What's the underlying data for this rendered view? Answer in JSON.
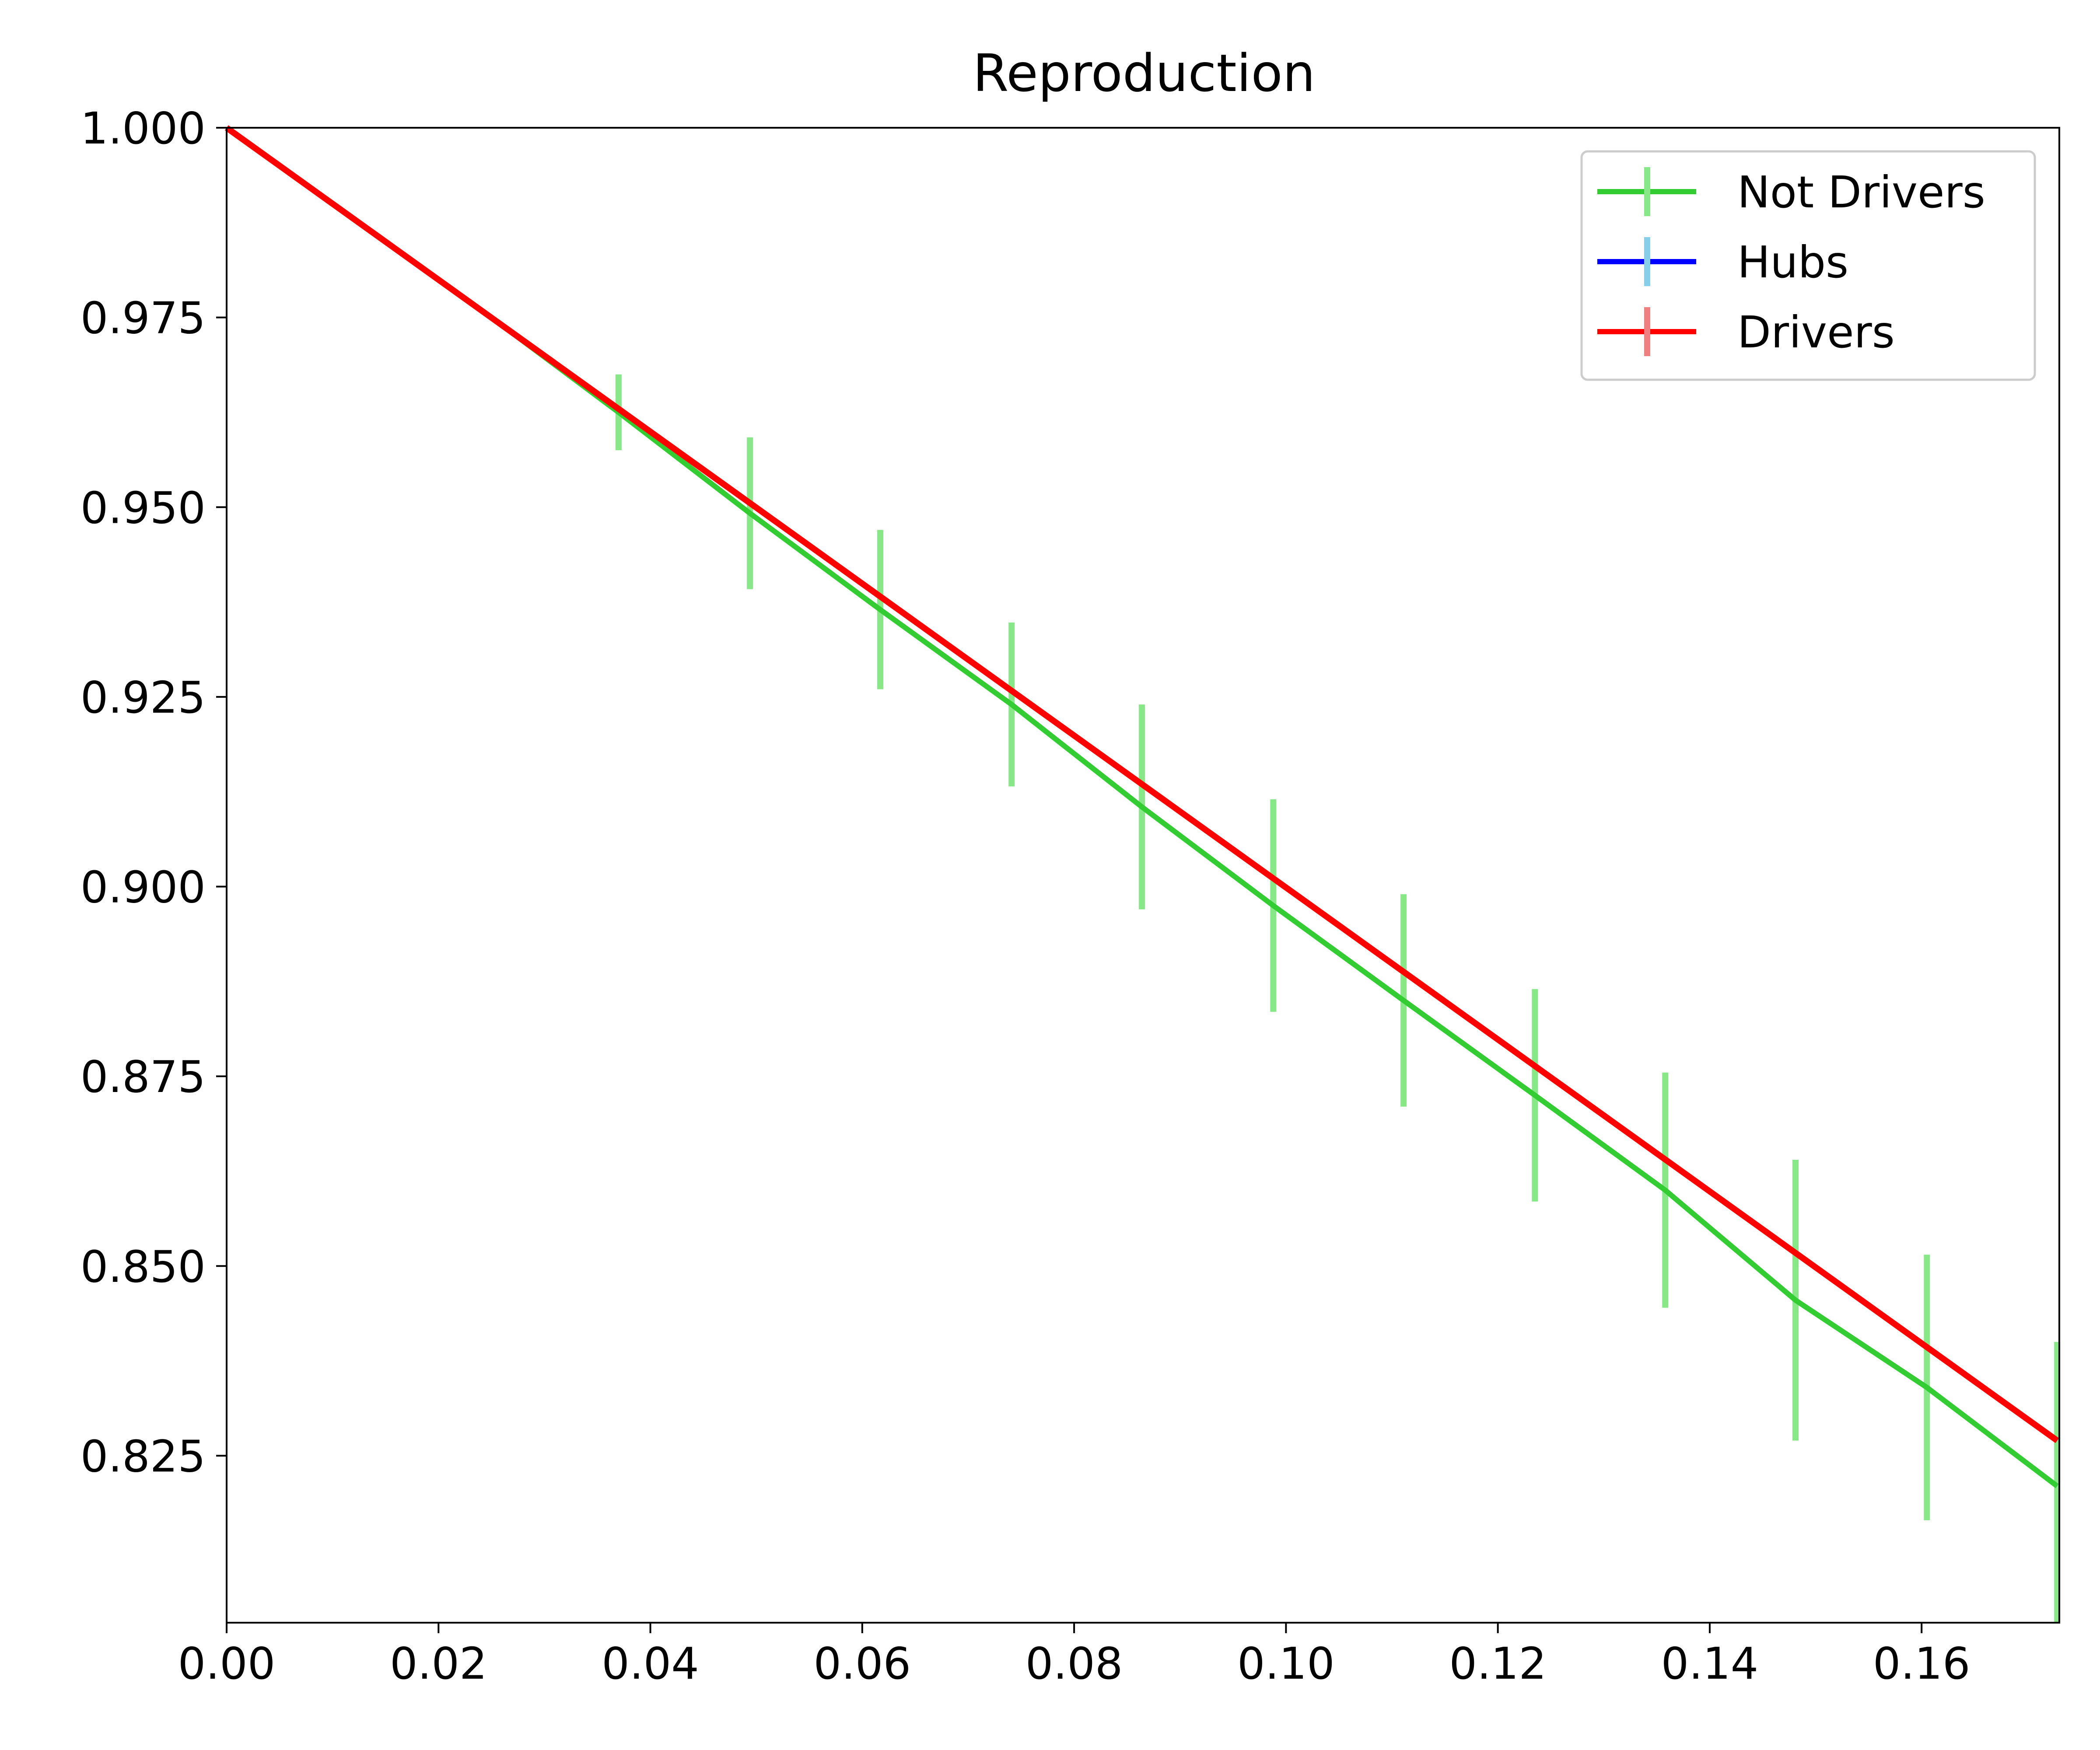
{
  "chart_data": {
    "type": "line",
    "title": "Reproduction",
    "xlabel": "",
    "ylabel": "",
    "xlim": [
      0.0,
      0.173
    ],
    "ylim": [
      0.803,
      1.0
    ],
    "x_ticks": [
      "0.00",
      "0.02",
      "0.04",
      "0.06",
      "0.08",
      "0.10",
      "0.12",
      "0.14",
      "0.16"
    ],
    "y_ticks": [
      "0.825",
      "0.850",
      "0.875",
      "0.900",
      "0.925",
      "0.950",
      "0.975",
      "1.000"
    ],
    "grid": false,
    "legend": {
      "position": "top-right",
      "entries": [
        "Not Drivers",
        "Hubs",
        "Drivers"
      ]
    },
    "series": [
      {
        "name": "Not Drivers",
        "color": "#33cc33",
        "errorbar_color": "#88e888",
        "x": [
          0.0,
          0.0123,
          0.0247,
          0.037,
          0.0494,
          0.0617,
          0.0741,
          0.0864,
          0.0988,
          0.1111,
          0.1235,
          0.1358,
          0.1481,
          0.1605,
          0.1728
        ],
        "y": [
          1.0,
          0.9877,
          0.9753,
          0.9625,
          0.9492,
          0.9365,
          0.924,
          0.9105,
          0.8975,
          0.885,
          0.8725,
          0.86,
          0.8455,
          0.834,
          0.821
        ],
        "yerr": [
          0.0,
          0.0,
          0.0,
          0.005,
          0.01,
          0.0105,
          0.0108,
          0.0135,
          0.014,
          0.014,
          0.014,
          0.0155,
          0.0185,
          0.0175,
          0.019
        ]
      },
      {
        "name": "Hubs",
        "color": "#0000ff",
        "errorbar_color": "#87ceeb",
        "x": [
          0.0,
          0.1728
        ],
        "y": [
          1.0,
          0.827
        ],
        "yerr": [
          0.0,
          0.0
        ]
      },
      {
        "name": "Drivers",
        "color": "#ff0000",
        "errorbar_color": "#f08080",
        "x": [
          0.0,
          0.1728
        ],
        "y": [
          1.0,
          0.827
        ],
        "yerr": [
          0.0,
          0.0
        ]
      }
    ]
  }
}
